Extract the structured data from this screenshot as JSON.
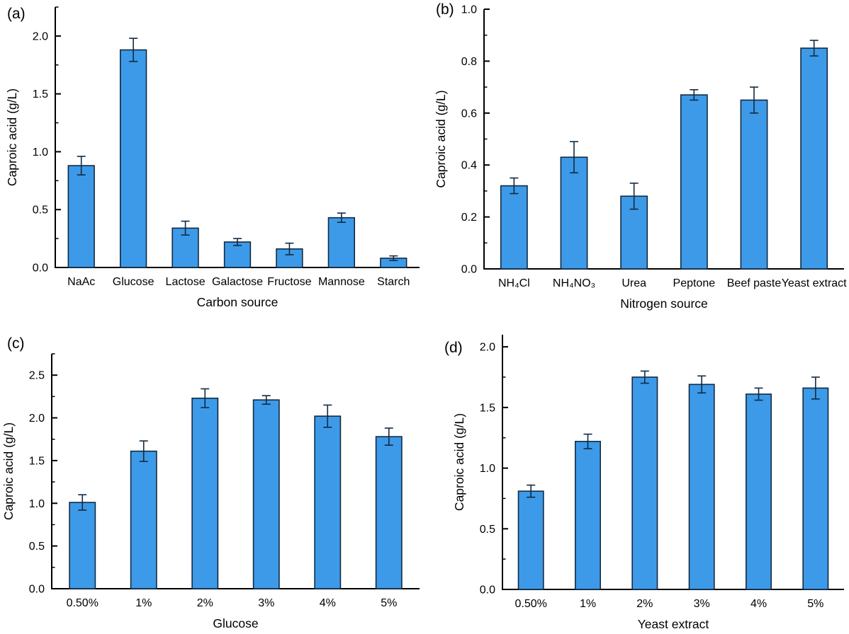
{
  "figure": {
    "background": "#ffffff",
    "axis_color": "#000000",
    "text_color": "#000000"
  },
  "chart_data": [
    {
      "tag": "(a)",
      "type": "bar",
      "title": "",
      "xlabel": "Carbon source",
      "ylabel": "Caproic acid (g/L)",
      "categories": [
        "NaAc",
        "Glucose",
        "Lactose",
        "Galactose",
        "Fructose",
        "Mannose",
        "Starch"
      ],
      "values": [
        0.88,
        1.88,
        0.34,
        0.22,
        0.16,
        0.43,
        0.08
      ],
      "errors": [
        0.08,
        0.1,
        0.06,
        0.03,
        0.05,
        0.04,
        0.02
      ],
      "ylim": [
        0,
        2.25
      ],
      "ytick_step": 0.5,
      "minor_step": 0.25,
      "ytick_decimals": 1,
      "bar_color": "#3D9AE8",
      "bar_edge": "#122A42",
      "error_color": "#122A42",
      "grid": false,
      "legend": null
    },
    {
      "tag": "(b)",
      "type": "bar",
      "title": "",
      "xlabel": "Nitrogen source",
      "ylabel": "Caproic acid (g/L)",
      "categories": [
        "NH₄Cl",
        "NH₄NO₃",
        "Urea",
        "Peptone",
        "Beef paste",
        "Yeast extract"
      ],
      "values": [
        0.32,
        0.43,
        0.28,
        0.67,
        0.65,
        0.85
      ],
      "errors": [
        0.03,
        0.06,
        0.05,
        0.02,
        0.05,
        0.03
      ],
      "ylim": [
        0,
        1.0
      ],
      "ytick_step": 0.2,
      "minor_step": 0.1,
      "ytick_decimals": 1,
      "bar_color": "#3D9AE8",
      "bar_edge": "#122A42",
      "error_color": "#122A42",
      "grid": false,
      "legend": null
    },
    {
      "tag": "(c)",
      "type": "bar",
      "title": "",
      "xlabel": "Glucose",
      "ylabel": "Caproic acid (g/L)",
      "categories": [
        "0.50%",
        "1%",
        "2%",
        "3%",
        "4%",
        "5%"
      ],
      "values": [
        1.01,
        1.61,
        2.23,
        2.21,
        2.02,
        1.78
      ],
      "errors": [
        0.09,
        0.12,
        0.11,
        0.05,
        0.13,
        0.1
      ],
      "ylim": [
        0,
        2.75
      ],
      "ytick_step": 0.5,
      "minor_step": 0.25,
      "ytick_decimals": 1,
      "bar_color": "#3D9AE8",
      "bar_edge": "#122A42",
      "error_color": "#122A42",
      "grid": false,
      "legend": null
    },
    {
      "tag": "(d)",
      "type": "bar",
      "title": "",
      "xlabel": "Yeast extract",
      "ylabel": "Caproic acid (g/L)",
      "categories": [
        "0.50%",
        "1%",
        "2%",
        "3%",
        "4%",
        "5%"
      ],
      "values": [
        0.81,
        1.22,
        1.75,
        1.69,
        1.61,
        1.66
      ],
      "errors": [
        0.05,
        0.06,
        0.05,
        0.07,
        0.05,
        0.09
      ],
      "ylim": [
        0,
        2.1
      ],
      "ytick_step": 0.5,
      "minor_step": 0.25,
      "ytick_decimals": 1,
      "bar_color": "#3D9AE8",
      "bar_edge": "#122A42",
      "error_color": "#122A42",
      "grid": false,
      "legend": null
    }
  ]
}
